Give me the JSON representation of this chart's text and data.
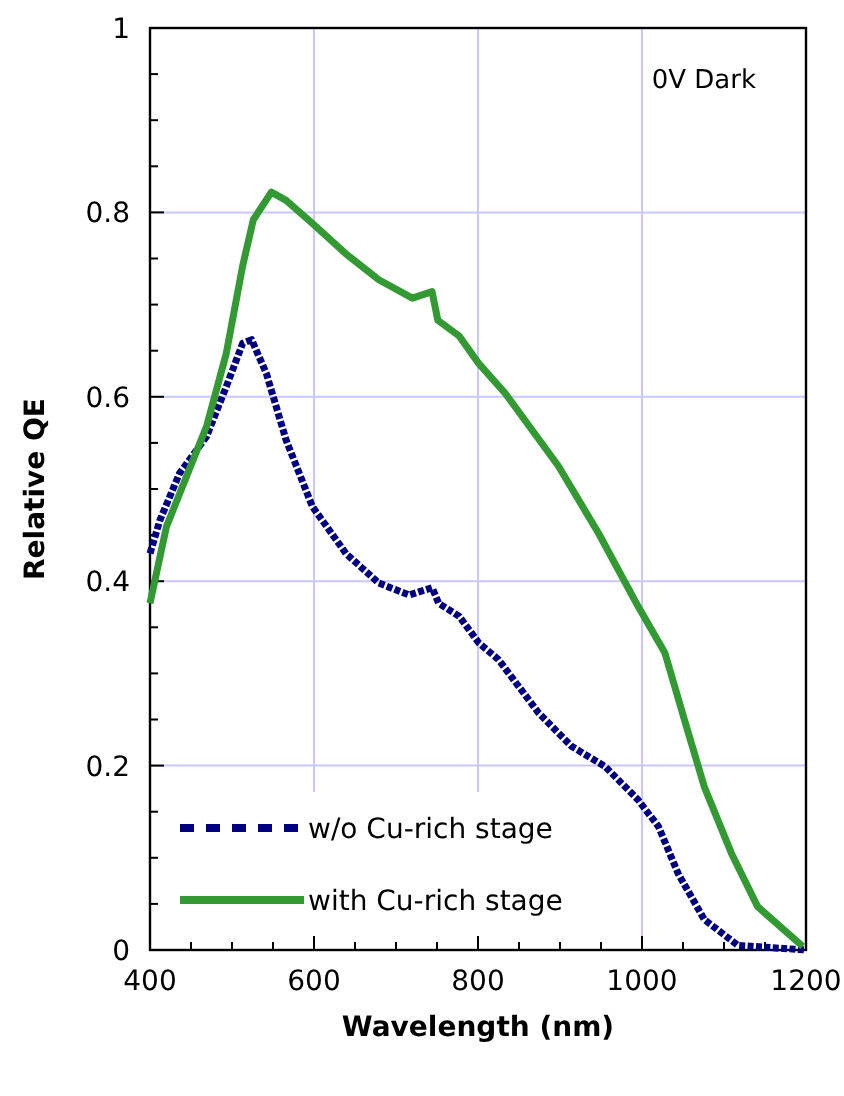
{
  "chart_data": {
    "type": "line",
    "xlabel": "Wavelength (nm)",
    "ylabel": "Relative QE",
    "annotations": [
      "0V Dark"
    ],
    "xlim": [
      400,
      1200
    ],
    "ylim": [
      0,
      1
    ],
    "xticks": [
      400,
      600,
      800,
      1000,
      1200
    ],
    "yticks": [
      0,
      0.2,
      0.4,
      0.6,
      0.8,
      1
    ],
    "grid": true,
    "legend": "bottom left",
    "series": [
      {
        "name": "w/o Cu-rich stage",
        "color": "#000080",
        "line_style": "dashed",
        "x": [
          400,
          412,
          436,
          469,
          493,
          513,
          524,
          542,
          566,
          598,
          639,
          679,
          716,
          744,
          752,
          777,
          801,
          825,
          874,
          914,
          955,
          995,
          1020,
          1044,
          1076,
          1117,
          1200
        ],
        "values": [
          0.43,
          0.466,
          0.517,
          0.557,
          0.611,
          0.658,
          0.662,
          0.625,
          0.553,
          0.481,
          0.43,
          0.398,
          0.385,
          0.393,
          0.376,
          0.362,
          0.333,
          0.315,
          0.257,
          0.221,
          0.199,
          0.163,
          0.134,
          0.083,
          0.033,
          0.005,
          0
        ]
      },
      {
        "name": "with Cu-rich stage",
        "color": "#339933",
        "line_style": "solid",
        "x": [
          400,
          420,
          469,
          493,
          513,
          526,
          548,
          566,
          598,
          639,
          679,
          720,
          744,
          751,
          777,
          801,
          833,
          898,
          947,
          995,
          1028,
          1052,
          1076,
          1109,
          1141,
          1196
        ],
        "values": [
          0.376,
          0.459,
          0.568,
          0.647,
          0.742,
          0.792,
          0.822,
          0.813,
          0.788,
          0.755,
          0.727,
          0.707,
          0.714,
          0.683,
          0.666,
          0.636,
          0.604,
          0.525,
          0.452,
          0.373,
          0.322,
          0.249,
          0.177,
          0.105,
          0.047,
          0.004
        ]
      }
    ]
  }
}
